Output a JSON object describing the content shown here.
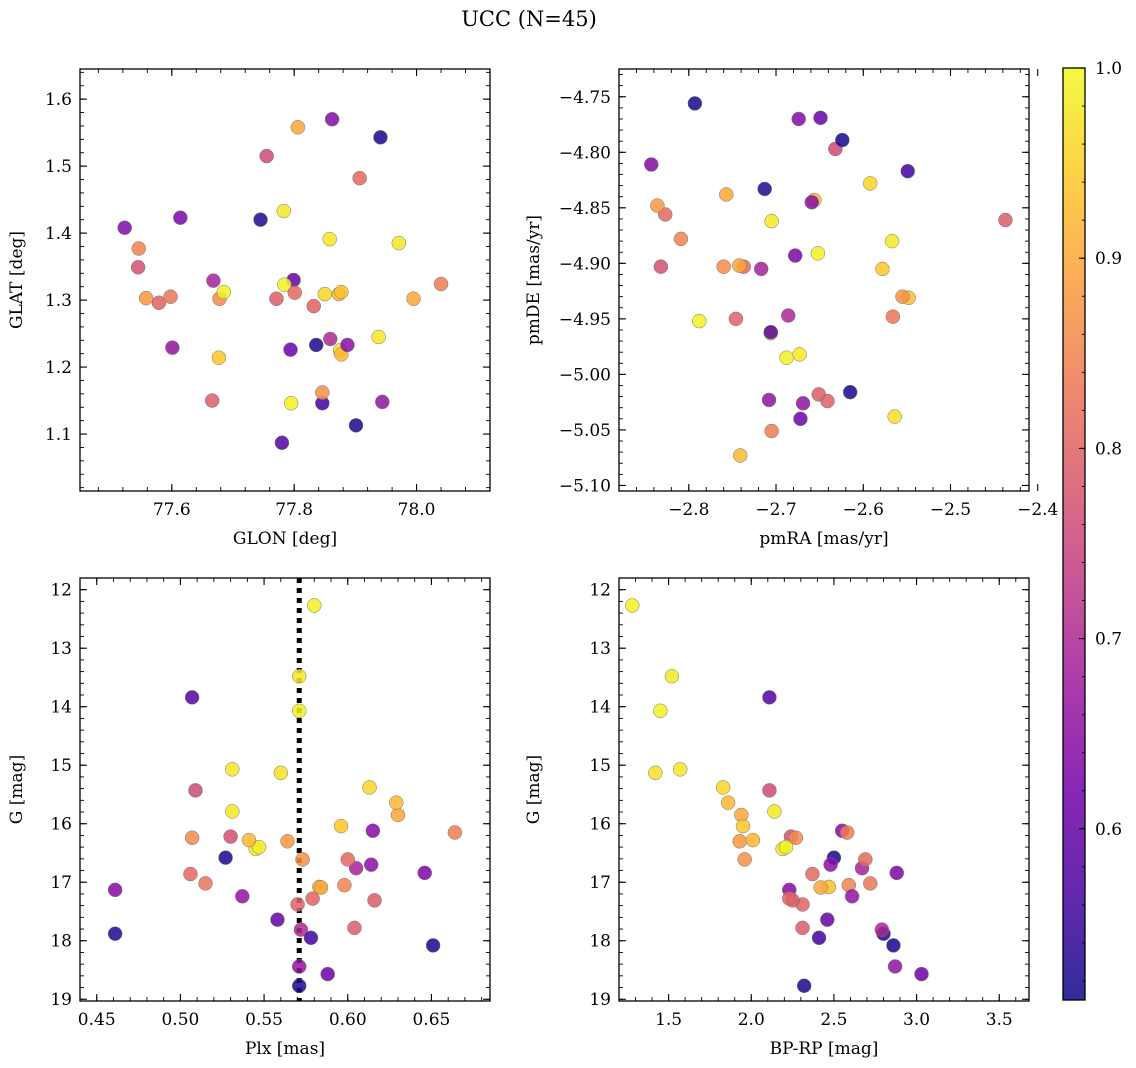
{
  "figure": {
    "title": "UCC (N=45)"
  },
  "colorbar": {
    "range": [
      0.51,
      1.0
    ],
    "ticks": [
      0.6,
      0.7,
      0.8,
      0.9,
      1.0
    ],
    "tick_labels": [
      "0.6",
      "0.7",
      "0.8",
      "0.9",
      "1.0"
    ],
    "colormap": "plasma",
    "colormap_stops": [
      "#0d0887",
      "#46039f",
      "#7201a8",
      "#9c179e",
      "#bd3786",
      "#d8576b",
      "#ed7953",
      "#fb9f3a",
      "#fdca26",
      "#f0f921"
    ]
  },
  "stars": [
    {
      "glon": 77.755,
      "glat": 1.515,
      "pmra": -2.632,
      "pmde": -4.797,
      "plx": 0.509,
      "g": 15.43,
      "bprp": 2.11,
      "p": 0.76
    },
    {
      "glon": 77.806,
      "glat": 1.558,
      "pmra": -2.757,
      "pmde": -4.838,
      "plx": 0.63,
      "g": 15.85,
      "bprp": 1.94,
      "p": 0.9
    },
    {
      "glon": 77.862,
      "glat": 1.57,
      "pmra": -2.674,
      "pmde": -4.77,
      "plx": 0.615,
      "g": 16.12,
      "bprp": 2.55,
      "p": 0.64
    },
    {
      "glon": 77.941,
      "glat": 1.543,
      "pmra": -2.793,
      "pmde": -4.756,
      "plx": 0.651,
      "g": 18.08,
      "bprp": 2.86,
      "p": 0.52
    },
    {
      "glon": 77.907,
      "glat": 1.482,
      "pmra": -2.827,
      "pmde": -4.856,
      "plx": 0.506,
      "g": 16.86,
      "bprp": 2.37,
      "p": 0.81
    },
    {
      "glon": 77.523,
      "glat": 1.408,
      "pmra": -2.843,
      "pmde": -4.811,
      "plx": 0.461,
      "g": 17.13,
      "bprp": 2.23,
      "p": 0.64
    },
    {
      "glon": 77.614,
      "glat": 1.423,
      "pmra": -2.678,
      "pmde": -4.893,
      "plx": 0.646,
      "g": 16.84,
      "bprp": 2.88,
      "p": 0.63
    },
    {
      "glon": 77.745,
      "glat": 1.42,
      "pmra": -2.713,
      "pmde": -4.833,
      "plx": 0.461,
      "g": 17.88,
      "bprp": 2.8,
      "p": 0.53
    },
    {
      "glon": 77.783,
      "glat": 1.433,
      "pmra": -2.705,
      "pmde": -4.862,
      "plx": 0.531,
      "g": 15.07,
      "bprp": 1.57,
      "p": 0.98
    },
    {
      "glon": 77.858,
      "glat": 1.391,
      "pmra": -2.706,
      "pmde": -4.963,
      "plx": 0.531,
      "g": 15.79,
      "bprp": 2.14,
      "p": 0.98
    },
    {
      "glon": 77.971,
      "glat": 1.385,
      "pmra": -2.567,
      "pmde": -4.88,
      "plx": 0.545,
      "g": 16.43,
      "bprp": 2.19,
      "p": 0.98
    },
    {
      "glon": 77.546,
      "glat": 1.377,
      "pmra": -2.809,
      "pmde": -4.878,
      "plx": 0.598,
      "g": 17.05,
      "bprp": 2.59,
      "p": 0.85
    },
    {
      "glon": 77.545,
      "glat": 1.349,
      "pmra": -2.832,
      "pmde": -4.903,
      "plx": 0.53,
      "g": 16.22,
      "bprp": 2.24,
      "p": 0.77
    },
    {
      "glon": 77.668,
      "glat": 1.329,
      "pmra": -2.717,
      "pmde": -4.905,
      "plx": 0.605,
      "g": 16.76,
      "bprp": 2.67,
      "p": 0.69
    },
    {
      "glon": 77.799,
      "glat": 1.33,
      "pmra": -2.649,
      "pmde": -4.769,
      "plx": 0.558,
      "g": 17.64,
      "bprp": 2.46,
      "p": 0.6
    },
    {
      "glon": 77.558,
      "glat": 1.303,
      "pmra": -2.836,
      "pmde": -4.848,
      "plx": 0.564,
      "g": 16.3,
      "bprp": 1.93,
      "p": 0.88
    },
    {
      "glon": 77.579,
      "glat": 1.296,
      "pmra": -2.746,
      "pmde": -4.95,
      "plx": 0.57,
      "g": 17.38,
      "bprp": 2.31,
      "p": 0.8
    },
    {
      "glon": 77.598,
      "glat": 1.305,
      "pmra": -2.566,
      "pmde": -4.948,
      "plx": 0.515,
      "g": 17.02,
      "bprp": 2.72,
      "p": 0.83
    },
    {
      "glon": 77.678,
      "glat": 1.302,
      "pmra": -2.76,
      "pmde": -4.903,
      "plx": 0.507,
      "g": 16.24,
      "bprp": 2.27,
      "p": 0.86
    },
    {
      "glon": 77.685,
      "glat": 1.312,
      "pmra": -2.788,
      "pmde": -4.952,
      "plx": 0.547,
      "g": 16.4,
      "bprp": 2.21,
      "p": 0.99
    },
    {
      "glon": 77.771,
      "glat": 1.302,
      "pmra": -2.651,
      "pmde": -5.018,
      "plx": 0.616,
      "g": 17.31,
      "bprp": 2.25,
      "p": 0.79
    },
    {
      "glon": 77.784,
      "glat": 1.323,
      "pmra": -2.652,
      "pmde": -4.891,
      "plx": 0.58,
      "g": 12.27,
      "bprp": 1.28,
      "p": 0.99
    },
    {
      "glon": 77.801,
      "glat": 1.311,
      "pmra": -2.737,
      "pmde": -4.903,
      "plx": 0.6,
      "g": 16.61,
      "bprp": 2.69,
      "p": 0.81
    },
    {
      "glon": 77.85,
      "glat": 1.309,
      "pmra": -2.592,
      "pmde": -4.828,
      "plx": 0.613,
      "g": 15.38,
      "bprp": 1.83,
      "p": 0.96
    },
    {
      "glon": 77.873,
      "glat": 1.309,
      "pmra": -2.656,
      "pmde": -4.843,
      "plx": 0.629,
      "g": 15.64,
      "bprp": 1.86,
      "p": 0.92
    },
    {
      "glon": 77.877,
      "glat": 1.312,
      "pmra": -2.548,
      "pmde": -4.931,
      "plx": 0.583,
      "g": 17.08,
      "bprp": 2.47,
      "p": 0.93
    },
    {
      "glon": 77.832,
      "glat": 1.291,
      "pmra": -2.641,
      "pmde": -5.024,
      "plx": 0.579,
      "g": 17.28,
      "bprp": 2.23,
      "p": 0.8
    },
    {
      "glon": 77.995,
      "glat": 1.302,
      "pmra": -2.742,
      "pmde": -4.902,
      "plx": 0.584,
      "g": 17.09,
      "bprp": 2.42,
      "p": 0.9
    },
    {
      "glon": 78.04,
      "glat": 1.324,
      "pmra": -2.705,
      "pmde": -5.051,
      "plx": 0.664,
      "g": 16.15,
      "bprp": 2.58,
      "p": 0.84
    },
    {
      "glon": 77.601,
      "glat": 1.229,
      "pmra": -2.669,
      "pmde": -5.026,
      "plx": 0.571,
      "g": 18.44,
      "bprp": 2.87,
      "p": 0.66
    },
    {
      "glon": 77.677,
      "glat": 1.214,
      "pmra": -2.578,
      "pmde": -4.905,
      "plx": 0.596,
      "g": 16.04,
      "bprp": 1.95,
      "p": 0.94
    },
    {
      "glon": 77.794,
      "glat": 1.226,
      "pmra": -2.672,
      "pmde": -5.04,
      "plx": 0.588,
      "g": 18.57,
      "bprp": 3.03,
      "p": 0.61
    },
    {
      "glon": 77.859,
      "glat": 1.242,
      "pmra": -2.686,
      "pmde": -4.947,
      "plx": 0.572,
      "g": 17.81,
      "bprp": 2.79,
      "p": 0.7
    },
    {
      "glon": 77.836,
      "glat": 1.233,
      "pmra": -2.615,
      "pmde": -5.016,
      "plx": 0.527,
      "g": 16.58,
      "bprp": 2.5,
      "p": 0.52
    },
    {
      "glon": 77.875,
      "glat": 1.225,
      "pmra": -2.564,
      "pmde": -5.038,
      "plx": 0.56,
      "g": 15.13,
      "bprp": 1.42,
      "p": 0.97
    },
    {
      "glon": 77.877,
      "glat": 1.219,
      "pmra": -2.741,
      "pmde": -5.073,
      "plx": 0.541,
      "g": 16.28,
      "bprp": 2.01,
      "p": 0.92
    },
    {
      "glon": 77.887,
      "glat": 1.233,
      "pmra": -2.659,
      "pmde": -4.845,
      "plx": 0.614,
      "g": 16.7,
      "bprp": 2.48,
      "p": 0.65
    },
    {
      "glon": 77.938,
      "glat": 1.245,
      "pmra": -2.673,
      "pmde": -4.982,
      "plx": 0.571,
      "g": 13.48,
      "bprp": 1.52,
      "p": 0.98
    },
    {
      "glon": 77.666,
      "glat": 1.15,
      "pmra": -2.437,
      "pmde": -4.861,
      "plx": 0.604,
      "g": 17.78,
      "bprp": 2.31,
      "p": 0.79
    },
    {
      "glon": 77.795,
      "glat": 1.146,
      "pmra": -2.688,
      "pmde": -4.985,
      "plx": 0.571,
      "g": 14.07,
      "bprp": 1.45,
      "p": 0.99
    },
    {
      "glon": 77.846,
      "glat": 1.146,
      "pmra": -2.549,
      "pmde": -4.817,
      "plx": 0.578,
      "g": 17.95,
      "bprp": 2.41,
      "p": 0.56
    },
    {
      "glon": 77.846,
      "glat": 1.162,
      "pmra": -2.555,
      "pmde": -4.93,
      "plx": 0.573,
      "g": 16.61,
      "bprp": 1.96,
      "p": 0.87
    },
    {
      "glon": 77.944,
      "glat": 1.148,
      "pmra": -2.708,
      "pmde": -5.023,
      "plx": 0.537,
      "g": 17.24,
      "bprp": 2.61,
      "p": 0.66
    },
    {
      "glon": 77.901,
      "glat": 1.113,
      "pmra": -2.624,
      "pmde": -4.789,
      "plx": 0.571,
      "g": 18.77,
      "bprp": 2.32,
      "p": 0.52
    },
    {
      "glon": 77.78,
      "glat": 1.087,
      "pmra": -2.706,
      "pmde": -4.962,
      "plx": 0.507,
      "g": 13.84,
      "bprp": 2.11,
      "p": 0.58
    }
  ],
  "chart_data": [
    {
      "type": "scatter",
      "title": "",
      "xlabel": "GLON [deg]",
      "ylabel": "GLAT [deg]",
      "xlim": [
        77.45,
        78.12
      ],
      "ylim": [
        1.015,
        1.645
      ],
      "x_ticks": [
        77.6,
        77.8,
        78.0
      ],
      "x_tick_labels": [
        "77.6",
        "77.8",
        "78.0"
      ],
      "y_ticks": [
        1.1,
        1.2,
        1.3,
        1.4,
        1.5,
        1.6
      ],
      "y_tick_labels": [
        "1.1",
        "1.2",
        "1.3",
        "1.4",
        "1.5",
        "1.6"
      ],
      "x_field": "glon",
      "y_field": "glat",
      "color_field": "p",
      "y_inverted": false
    },
    {
      "type": "scatter",
      "title": "",
      "xlabel": "pmRA [mas/yr]",
      "ylabel": "pmDE [mas/yr]",
      "xlim": [
        -2.88,
        -2.41
      ],
      "ylim": [
        -5.105,
        -4.725
      ],
      "x_ticks": [
        -2.8,
        -2.7,
        -2.6,
        -2.5,
        -2.4
      ],
      "x_tick_labels": [
        "−2.8",
        "−2.7",
        "−2.6",
        "−2.5",
        "−2.4"
      ],
      "y_ticks": [
        -5.1,
        -5.05,
        -5.0,
        -4.95,
        -4.9,
        -4.85,
        -4.8,
        -4.75
      ],
      "y_tick_labels": [
        "−5.10",
        "−5.05",
        "−5.00",
        "−4.95",
        "−4.90",
        "−4.85",
        "−4.80",
        "−4.75"
      ],
      "x_field": "pmra",
      "y_field": "pmde",
      "color_field": "p",
      "y_inverted": false
    },
    {
      "type": "scatter",
      "title": "",
      "xlabel": "Plx [mas]",
      "ylabel": "G [mag]",
      "xlim": [
        0.44,
        0.685
      ],
      "ylim": [
        11.8,
        19.03
      ],
      "x_ticks": [
        0.45,
        0.5,
        0.55,
        0.6,
        0.65
      ],
      "x_tick_labels": [
        "0.45",
        "0.50",
        "0.55",
        "0.60",
        "0.65"
      ],
      "y_ticks": [
        12,
        13,
        14,
        15,
        16,
        17,
        18,
        19
      ],
      "y_tick_labels": [
        "12",
        "13",
        "14",
        "15",
        "16",
        "17",
        "18",
        "19"
      ],
      "x_field": "plx",
      "y_field": "g",
      "color_field": "p",
      "y_inverted": true,
      "reference_line": {
        "x": 0.571,
        "style": "dotted"
      }
    },
    {
      "type": "scatter",
      "title": "",
      "xlabel": "BP-RP [mag]",
      "ylabel": "G [mag]",
      "xlim": [
        1.2,
        3.68
      ],
      "ylim": [
        11.8,
        19.03
      ],
      "x_ticks": [
        1.5,
        2.0,
        2.5,
        3.0,
        3.5
      ],
      "x_tick_labels": [
        "1.5",
        "2.0",
        "2.5",
        "3.0",
        "3.5"
      ],
      "y_ticks": [
        12,
        13,
        14,
        15,
        16,
        17,
        18,
        19
      ],
      "y_tick_labels": [
        "12",
        "13",
        "14",
        "15",
        "16",
        "17",
        "18",
        "19"
      ],
      "x_field": "bprp",
      "y_field": "g",
      "color_field": "p",
      "y_inverted": true
    }
  ]
}
